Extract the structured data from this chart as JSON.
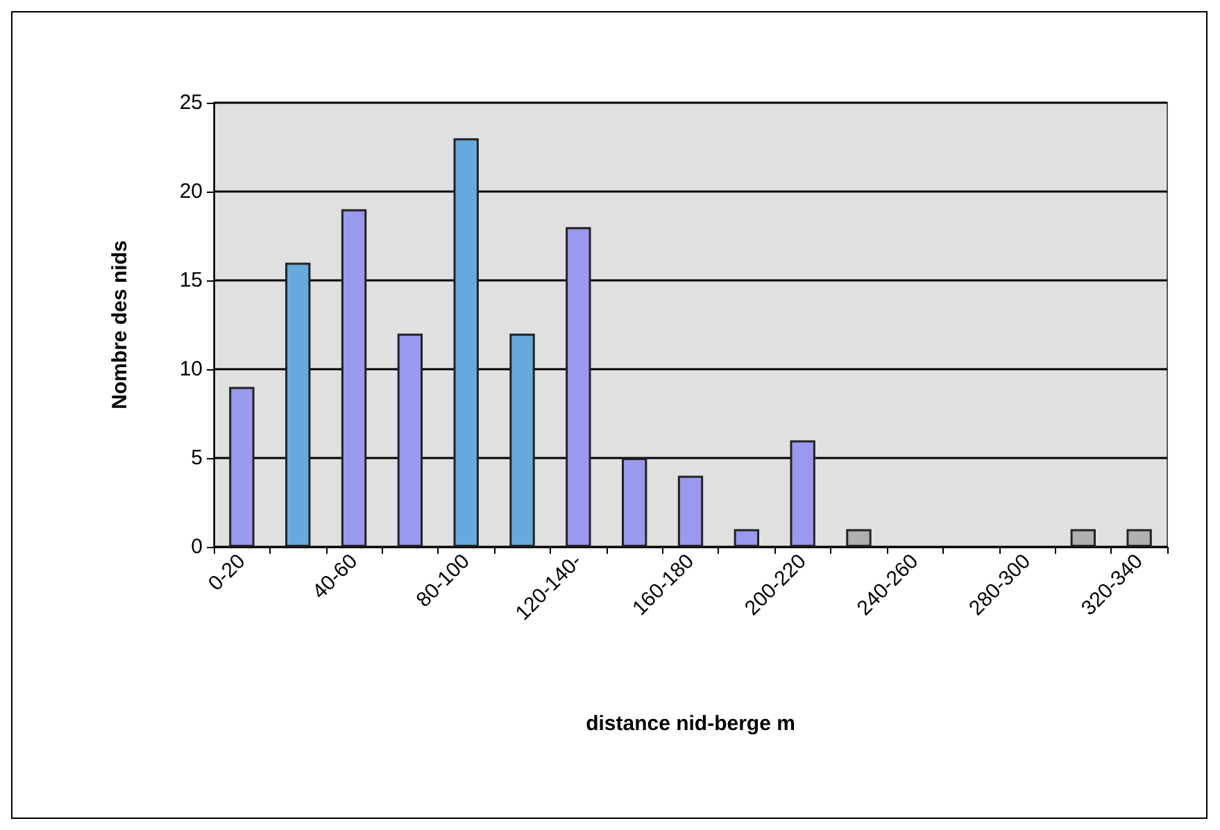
{
  "chart_data": {
    "type": "bar",
    "xlabel": "distance nid-berge m",
    "ylabel": "Nombre des nids",
    "categories": [
      "0-20",
      null,
      "40-60",
      null,
      "80-100",
      null,
      "120-140-",
      null,
      "160-180",
      null,
      "200-220",
      null,
      "240-260",
      null,
      "280-300",
      null,
      "320-340"
    ],
    "values": [
      9,
      16,
      19,
      12,
      23,
      12,
      18,
      5,
      4,
      1,
      6,
      1,
      0,
      0,
      0,
      1,
      1
    ],
    "colors": [
      "#9999ee",
      "#66aadd",
      "#9999ee",
      "#9999ee",
      "#66aadd",
      "#66aadd",
      "#9999ee",
      "#9999ee",
      "#9999ee",
      "#9999ee",
      "#9999ee",
      "#b0b0b0",
      "#b0b0b0",
      "#b0b0b0",
      "#b0b0b0",
      "#b0b0b0",
      "#b0b0b0"
    ],
    "ylim": [
      0,
      25
    ],
    "yticks": [
      0,
      5,
      10,
      15,
      20,
      25
    ],
    "grid": "y"
  }
}
